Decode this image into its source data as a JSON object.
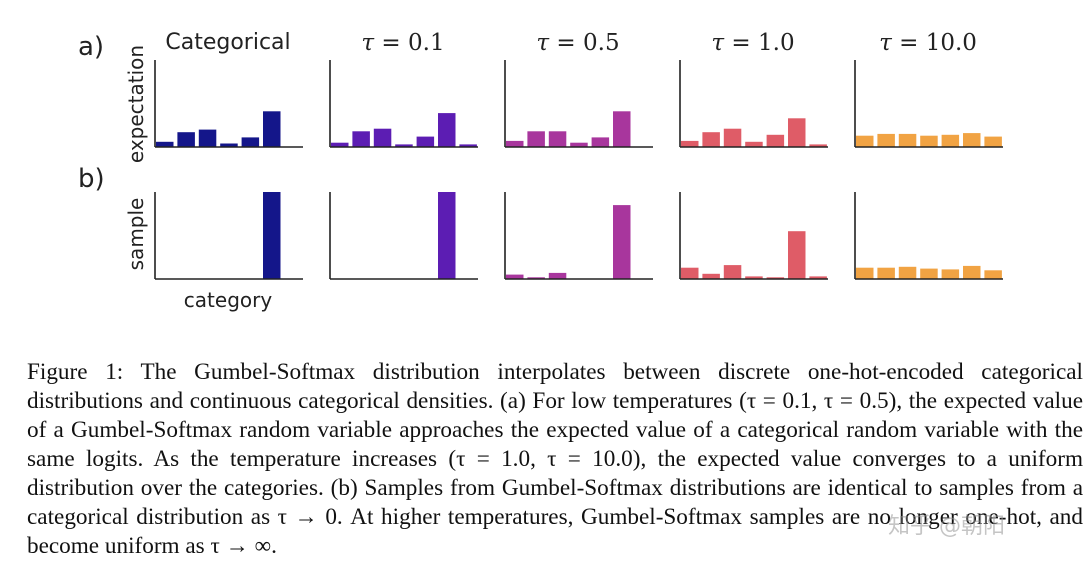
{
  "figure": {
    "row_labels": [
      "a)",
      "b)"
    ],
    "y_labels": [
      "expectation",
      "sample"
    ],
    "x_label": "category",
    "column_titles": [
      {
        "kind": "text",
        "text": "Categorical"
      },
      {
        "kind": "tau",
        "symbol": "τ",
        "rest": " = 0.1"
      },
      {
        "kind": "tau",
        "symbol": "τ",
        "rest": " = 0.5"
      },
      {
        "kind": "tau",
        "symbol": "τ",
        "rest": " = 1.0"
      },
      {
        "kind": "tau",
        "symbol": "τ",
        "rest": " = 10.0"
      }
    ]
  },
  "chart_data": [
    {
      "type": "bar",
      "title": "Categorical",
      "row": "expectation",
      "color": "#14168a",
      "values": [
        0.06,
        0.17,
        0.2,
        0.04,
        0.11,
        0.41
      ]
    },
    {
      "type": "bar",
      "title": "τ = 0.1",
      "row": "expectation",
      "color": "#5c1db3",
      "values": [
        0.05,
        0.18,
        0.21,
        0.03,
        0.12,
        0.39,
        0.03
      ]
    },
    {
      "type": "bar",
      "title": "τ = 0.5",
      "row": "expectation",
      "color": "#a8369d",
      "values": [
        0.07,
        0.18,
        0.18,
        0.05,
        0.11,
        0.41
      ]
    },
    {
      "type": "bar",
      "title": "τ = 1.0",
      "row": "expectation",
      "color": "#df5c67",
      "values": [
        0.07,
        0.17,
        0.21,
        0.06,
        0.14,
        0.33,
        0.03
      ]
    },
    {
      "type": "bar",
      "title": "τ = 10.0",
      "row": "expectation",
      "color": "#f1a343",
      "values": [
        0.13,
        0.15,
        0.15,
        0.13,
        0.14,
        0.16,
        0.12
      ]
    },
    {
      "type": "bar",
      "title": "Categorical",
      "row": "sample",
      "color": "#14168a",
      "values": [
        0,
        0,
        0,
        0,
        0,
        1.0
      ]
    },
    {
      "type": "bar",
      "title": "τ = 0.1",
      "row": "sample",
      "color": "#5c1db3",
      "values": [
        0,
        0,
        0,
        0,
        0,
        1.0
      ]
    },
    {
      "type": "bar",
      "title": "τ = 0.5",
      "row": "sample",
      "color": "#a8369d",
      "values": [
        0.05,
        0.02,
        0.07,
        0,
        0,
        0.85
      ]
    },
    {
      "type": "bar",
      "title": "τ = 1.0",
      "row": "sample",
      "color": "#df5c67",
      "values": [
        0.13,
        0.06,
        0.16,
        0.03,
        0.02,
        0.55,
        0.03
      ]
    },
    {
      "type": "bar",
      "title": "τ = 10.0",
      "row": "sample",
      "color": "#f1a343",
      "values": [
        0.13,
        0.13,
        0.14,
        0.12,
        0.11,
        0.15,
        0.1
      ]
    }
  ],
  "caption": {
    "text": "Figure 1: The Gumbel-Softmax distribution interpolates between discrete one-hot-encoded categorical distributions and continuous categorical densities. (a) For low temperatures (τ = 0.1, τ = 0.5), the expected value of a Gumbel-Softmax random variable approaches the expected value of a categorical random variable with the same logits. As the temperature increases (τ = 1.0, τ = 10.0), the expected value converges to a uniform distribution over the categories. (b) Samples from Gumbel-Softmax distributions are identical to samples from a categorical distribution as τ → 0. At higher temperatures, Gumbel-Softmax samples are no longer one-hot, and become uniform as τ → ∞."
  },
  "watermark": "知乎 @朝阳"
}
